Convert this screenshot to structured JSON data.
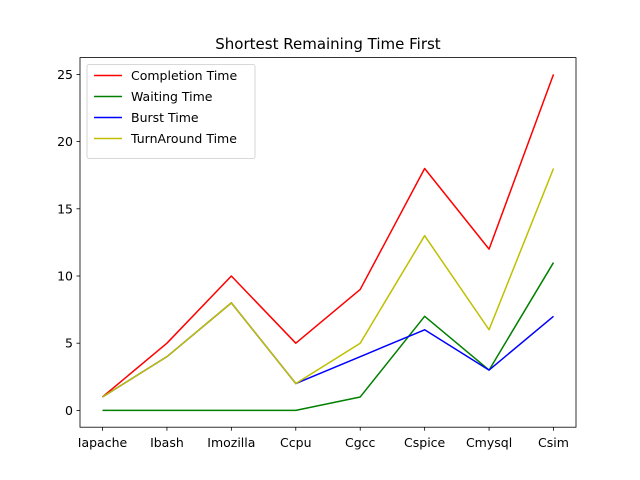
{
  "chart_data": {
    "type": "line",
    "title": "Shortest Remaining Time First",
    "xlabel": "",
    "ylabel": "",
    "categories": [
      "Iapache",
      "Ibash",
      "Imozilla",
      "Ccpu",
      "Cgcc",
      "Cspice",
      "Cmysql",
      "Csim"
    ],
    "ylim": [
      -1.25,
      26.25
    ],
    "yticks": [
      0,
      5,
      10,
      15,
      20,
      25
    ],
    "grid": false,
    "legend_position": "top-left",
    "series": [
      {
        "name": "Completion Time",
        "color": "#ff0000",
        "values": [
          1,
          5,
          10,
          5,
          9,
          18,
          12,
          25
        ]
      },
      {
        "name": "Waiting Time",
        "color": "#008000",
        "values": [
          0,
          0,
          0,
          0,
          1,
          7,
          3,
          11
        ]
      },
      {
        "name": "Burst Time",
        "color": "#0000ff",
        "values": [
          1,
          4,
          8,
          2,
          4,
          6,
          3,
          7
        ]
      },
      {
        "name": "TurnAround Time",
        "color": "#bfbf00",
        "values": [
          1,
          4,
          8,
          2,
          5,
          13,
          6,
          18
        ]
      }
    ]
  }
}
